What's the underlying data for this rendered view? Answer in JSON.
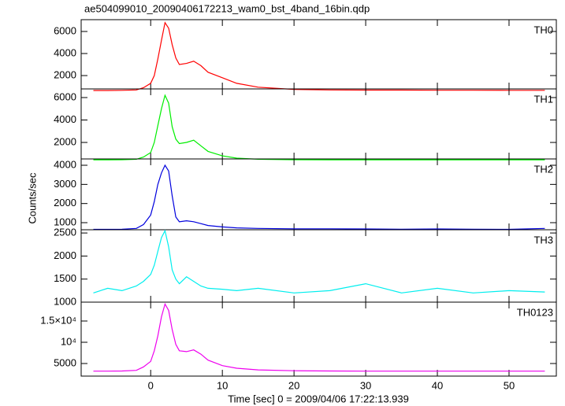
{
  "chart_data": {
    "type": "line",
    "title": "ae504099010_20090406172213_wam0_bst_4band_16bin.qdp",
    "xlabel": "Time [sec] 0 = 2009/04/06 17:22:13.939",
    "ylabel": "Counts/sec",
    "xlim": [
      -9.7,
      56.6
    ],
    "xticks": [
      0,
      10,
      20,
      30,
      40,
      50
    ],
    "x": [
      -8,
      -6,
      -4,
      -2,
      -1,
      0,
      0.5,
      1,
      1.5,
      2,
      2.5,
      3,
      3.5,
      4,
      5,
      6,
      7,
      8,
      10,
      12,
      15,
      20,
      25,
      30,
      35,
      40,
      45,
      50,
      55
    ],
    "series": [
      {
        "name": "TH0",
        "color": "#ff0000",
        "ylim": [
          790,
          7070
        ],
        "yticks": [
          2000,
          4000,
          6000
        ],
        "values": [
          650,
          650,
          660,
          700,
          900,
          1300,
          2000,
          3500,
          5200,
          6800,
          6300,
          4800,
          3600,
          3000,
          3100,
          3300,
          2900,
          2300,
          1800,
          1300,
          950,
          750,
          700,
          680,
          680,
          670,
          670,
          660,
          660
        ]
      },
      {
        "name": "TH1",
        "color": "#00ee00",
        "ylim": [
          530,
          6770
        ],
        "yticks": [
          2000,
          4000,
          6000
        ],
        "values": [
          450,
          450,
          460,
          500,
          700,
          1100,
          2000,
          3500,
          5000,
          6200,
          5500,
          3400,
          2300,
          1900,
          2000,
          2200,
          1700,
          1200,
          800,
          600,
          500,
          460,
          450,
          450,
          450,
          450,
          450,
          450,
          450
        ]
      },
      {
        "name": "TH2",
        "color": "#0000dd",
        "ylim": [
          630,
          4330
        ],
        "yticks": [
          1000,
          2000,
          3000,
          4000
        ],
        "values": [
          650,
          650,
          660,
          700,
          900,
          1400,
          2100,
          3000,
          3600,
          4000,
          3700,
          2400,
          1300,
          1050,
          1100,
          1050,
          950,
          850,
          780,
          730,
          700,
          680,
          680,
          670,
          660,
          670,
          660,
          650,
          700
        ]
      },
      {
        "name": "TH3",
        "color": "#00eeee",
        "ylim": [
          1000,
          2570
        ],
        "yticks": [
          1000,
          1500,
          2000,
          2500
        ],
        "values": [
          1200,
          1300,
          1250,
          1350,
          1450,
          1600,
          1800,
          2100,
          2400,
          2550,
          2200,
          1700,
          1500,
          1400,
          1550,
          1450,
          1350,
          1300,
          1280,
          1250,
          1300,
          1200,
          1250,
          1400,
          1200,
          1300,
          1200,
          1250,
          1220
        ]
      },
      {
        "name": "TH0123",
        "color": "#ee00ee",
        "ylim": [
          2040,
          19440
        ],
        "yticks": [
          5000,
          {
            "value": 10000,
            "label": "10⁴"
          },
          {
            "value": 15000,
            "label": "1.5×10⁴"
          }
        ],
        "values": [
          3200,
          3200,
          3250,
          3400,
          4200,
          5500,
          8000,
          11500,
          16000,
          19000,
          17500,
          13000,
          9500,
          8000,
          7800,
          8200,
          7200,
          5800,
          4500,
          3900,
          3500,
          3300,
          3250,
          3200,
          3200,
          3200,
          3200,
          3200,
          3200
        ]
      }
    ]
  }
}
